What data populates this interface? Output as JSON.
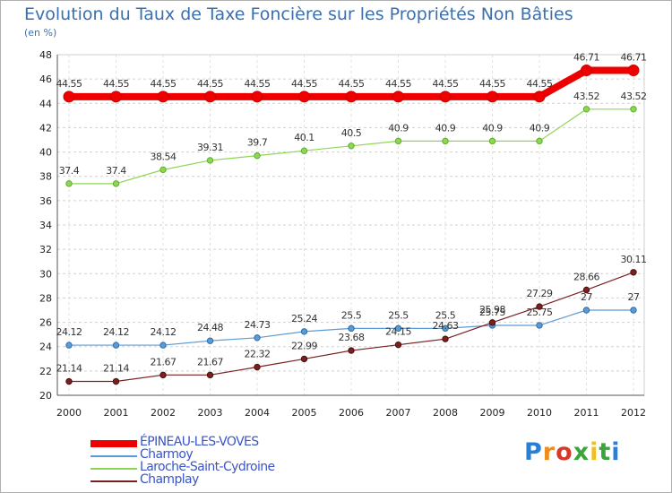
{
  "title": "Evolution du Taux de Taxe Foncière sur les Propriétés Non Bâties",
  "unit_label": "(en %)",
  "logo_text": "Proxiti",
  "chart_data": {
    "type": "line",
    "x": [
      "2000",
      "2001",
      "2002",
      "2003",
      "2004",
      "2005",
      "2006",
      "2007",
      "2008",
      "2009",
      "2010",
      "2011",
      "2012"
    ],
    "ylim": [
      20,
      48
    ],
    "yticks": [
      20,
      22,
      24,
      26,
      28,
      30,
      32,
      34,
      36,
      38,
      40,
      42,
      44,
      46,
      48
    ],
    "grid": "horizontal-dashed",
    "legend_position": "bottom-left",
    "series": [
      {
        "name": "ÉPINEAU-LES-VOVES",
        "color": "#ee0000",
        "values": [
          44.55,
          44.55,
          44.55,
          44.55,
          44.55,
          44.55,
          44.55,
          44.55,
          44.55,
          44.55,
          44.55,
          46.71,
          46.71
        ]
      },
      {
        "name": "Charmoy",
        "color": "#5b9bd5",
        "values": [
          24.12,
          24.12,
          24.12,
          24.48,
          24.73,
          25.24,
          25.5,
          25.5,
          25.5,
          25.75,
          25.75,
          27,
          27
        ]
      },
      {
        "name": "Laroche-Saint-Cydroine",
        "color": "#8ed653",
        "values": [
          37.4,
          37.4,
          38.54,
          39.31,
          39.7,
          40.1,
          40.5,
          40.9,
          40.9,
          40.9,
          40.9,
          43.52,
          43.52
        ]
      },
      {
        "name": "Champlay",
        "color": "#7a2020",
        "values": [
          21.14,
          21.14,
          21.67,
          21.67,
          22.32,
          22.99,
          23.68,
          24.15,
          24.63,
          25.98,
          27.29,
          28.66,
          30.11
        ]
      }
    ]
  }
}
